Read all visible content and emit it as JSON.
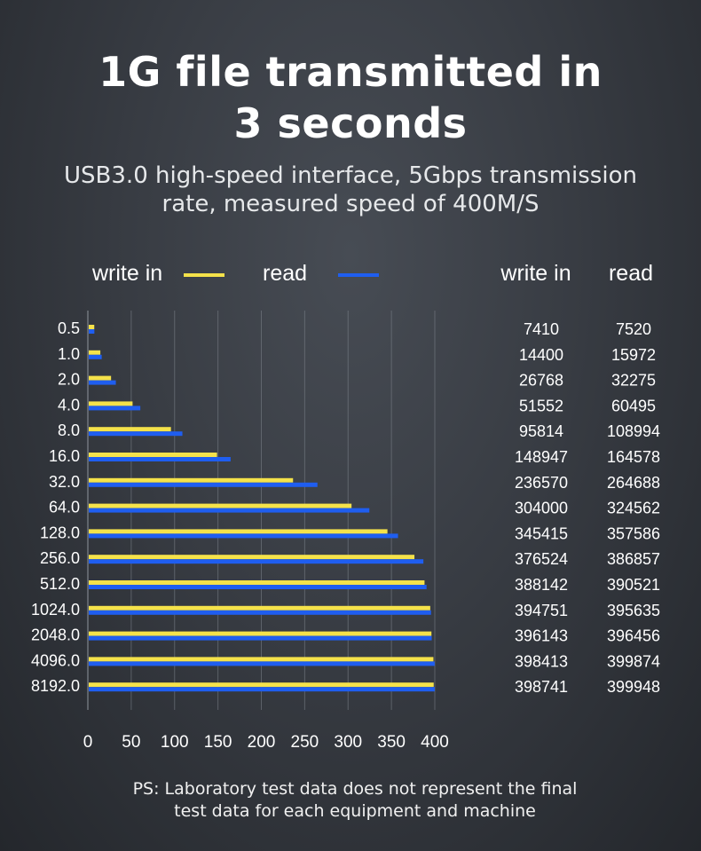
{
  "header": {
    "title_line1": "1G file transmitted in",
    "title_line2": "3 seconds",
    "subtitle_line1": "USB3.0 high-speed interface, 5Gbps transmission",
    "subtitle_line2": "rate, measured speed of 400M/S"
  },
  "legend": {
    "write_label": "write in",
    "read_label": "read",
    "write_color": "#f5e24a",
    "read_color": "#1f5ef0"
  },
  "table": {
    "write_header": "write in",
    "read_header": "read"
  },
  "chart_data": {
    "type": "bar",
    "orientation": "horizontal",
    "categories": [
      "0.5",
      "1.0",
      "2.0",
      "4.0",
      "8.0",
      "16.0",
      "32.0",
      "64.0",
      "128.0",
      "256.0",
      "512.0",
      "1024.0",
      "2048.0",
      "4096.0",
      "8192.0"
    ],
    "series": [
      {
        "name": "write in",
        "color": "#f5e24a",
        "values": [
          7410,
          14400,
          26768,
          51552,
          95814,
          148947,
          236570,
          304000,
          345415,
          376524,
          388142,
          394751,
          396143,
          398413,
          398741
        ]
      },
      {
        "name": "read",
        "color": "#1f5ef0",
        "values": [
          7520,
          15972,
          32275,
          60495,
          108994,
          164578,
          264688,
          324562,
          357586,
          386857,
          390521,
          395635,
          396456,
          399874,
          399948
        ]
      }
    ],
    "xticks": [
      "0",
      "50",
      "100",
      "150",
      "200",
      "250",
      "300",
      "350",
      "400"
    ],
    "xlim": [
      0,
      400
    ],
    "grid": true,
    "legend_position": "top"
  },
  "footnote": {
    "line1": "PS: Laboratory test data does not represent the final",
    "line2": "test data for each equipment and machine"
  }
}
